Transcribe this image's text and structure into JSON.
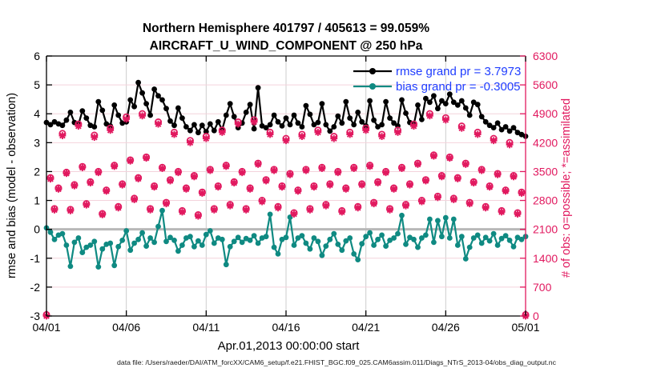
{
  "title": {
    "line1": "Northern Hemisphere 401797 / 405613 = 99.059%",
    "line2": "AIRCRAFT_U_WIND_COMPONENT @ 250 hPa"
  },
  "footer": "data file: /Users/raeder/DAI/ATM_forcXX/CAM6_setup/f.e21.FHIST_BGC.f09_025.CAM6assim.011/Diags_NTrS_2013-04/obs_diag_output.nc",
  "legend": {
    "items": [
      {
        "label": "rmse grand pr = 3.7973",
        "series": "rmse"
      },
      {
        "label": "bias grand pr = -0.3005",
        "series": "bias"
      }
    ],
    "text_color": "#1f3dff"
  },
  "colors": {
    "rmse": "#000000",
    "bias": "#0f8a82",
    "obs": "#e1195f",
    "legend_text": "#1f3dff",
    "grid_vertical": "#cdcdcd",
    "grid_horizontal": "#f4d3dc",
    "zero_line": "#b8b8b8",
    "axis_left": "#000000",
    "axis_right": "#e1195f"
  },
  "chart_data": {
    "type": "line",
    "title": "Northern Hemisphere 401797 / 405613 = 99.059% | AIRCRAFT_U_WIND_COMPONENT @ 250 hPa",
    "xlabel": "Apr.01,2013 00:00:00 start",
    "x_axis": {
      "tick_labels": [
        "04/01",
        "04/06",
        "04/11",
        "04/16",
        "04/21",
        "04/26",
        "05/01"
      ],
      "tick_bins": [
        0,
        20,
        40,
        60,
        80,
        100,
        120
      ],
      "n_bins": 121,
      "bins_per_day": 4,
      "grid": true
    },
    "left_axis": {
      "label": "rmse and bias (model - observation)",
      "lim": [
        -3,
        6
      ],
      "tick_values": [
        -3,
        -2,
        -1,
        0,
        1,
        2,
        3,
        4,
        5,
        6
      ],
      "tick_labels": [
        "-3",
        "-2",
        "-1",
        "0",
        "1",
        "2",
        "3",
        "4",
        "5",
        "6"
      ],
      "grid": true
    },
    "right_axis": {
      "label": "# of obs: o=possible; *=assimilated",
      "lim": [
        0,
        6300
      ],
      "tick_values": [
        0,
        700,
        1400,
        2100,
        2800,
        3500,
        4200,
        4900,
        5600,
        6300
      ],
      "tick_labels": [
        "0",
        "700",
        "1400",
        "2100",
        "2800",
        "3500",
        "4200",
        "4900",
        "5600",
        "6300"
      ]
    },
    "zero_reference_line": 0,
    "series": [
      {
        "name": "rmse",
        "axis": "left",
        "color": "#000000",
        "marker": "dot-line",
        "grand_mean": 3.7973,
        "values": [
          3.7,
          3.62,
          3.72,
          3.65,
          3.6,
          3.78,
          4.05,
          3.7,
          3.62,
          4.1,
          3.85,
          3.6,
          3.55,
          4.42,
          4.12,
          3.65,
          3.58,
          4.3,
          3.95,
          3.68,
          3.72,
          4.48,
          4.25,
          5.08,
          4.72,
          4.35,
          3.95,
          4.85,
          4.62,
          4.48,
          4.18,
          3.75,
          3.6,
          4.2,
          3.85,
          3.55,
          3.42,
          3.62,
          3.35,
          3.6,
          3.38,
          3.65,
          3.42,
          3.72,
          3.45,
          3.95,
          4.35,
          3.9,
          3.52,
          3.68,
          4.05,
          4.32,
          3.48,
          4.9,
          3.58,
          3.52,
          3.62,
          3.95,
          3.72,
          3.58,
          3.85,
          3.62,
          3.95,
          3.68,
          3.55,
          4.28,
          3.98,
          3.62,
          3.7,
          4.35,
          3.62,
          3.4,
          3.55,
          3.92,
          3.68,
          4.42,
          3.85,
          3.62,
          4.05,
          3.72,
          3.58,
          4.45,
          3.78,
          3.55,
          3.62,
          4.42,
          3.85,
          3.68,
          3.58,
          4.48,
          4.02,
          3.7,
          3.62,
          4.3,
          3.8,
          4.53,
          4.4,
          4.62,
          4.18,
          4.45,
          4.35,
          4.68,
          4.4,
          4.3,
          4.45,
          4.2,
          3.95,
          4.4,
          4.32,
          3.9,
          3.72,
          3.6,
          3.52,
          3.68,
          3.45,
          3.55,
          3.4,
          3.52,
          3.35,
          3.28,
          3.22
        ]
      },
      {
        "name": "bias",
        "axis": "left",
        "color": "#0f8a82",
        "marker": "dot-line",
        "grand_mean": -0.3005,
        "values": [
          0.05,
          -0.1,
          -0.35,
          -0.2,
          -0.15,
          -0.55,
          -1.28,
          -0.45,
          -0.3,
          -0.8,
          -0.62,
          -0.55,
          -0.42,
          -1.3,
          -0.68,
          -0.52,
          -0.48,
          -1.25,
          -0.6,
          -0.38,
          -0.05,
          -0.72,
          -0.48,
          -0.35,
          -0.12,
          -0.58,
          -0.3,
          -0.45,
          0.1,
          0.65,
          -0.42,
          -0.28,
          -0.38,
          -0.75,
          -0.55,
          -0.3,
          -0.25,
          -0.6,
          -0.4,
          -0.55,
          -0.18,
          -0.05,
          -0.48,
          -0.3,
          -0.35,
          -1.22,
          -0.6,
          -0.42,
          -0.28,
          -0.45,
          -0.32,
          -0.38,
          -0.22,
          -0.48,
          -0.3,
          -0.25,
          0.52,
          -0.62,
          -0.85,
          -0.35,
          -0.28,
          0.42,
          -0.55,
          -0.3,
          -0.22,
          -0.48,
          -0.68,
          -0.3,
          -0.42,
          -0.9,
          -0.58,
          -0.35,
          -0.15,
          -0.52,
          -0.72,
          -0.4,
          -0.3,
          -0.85,
          -1.05,
          -0.5,
          -0.25,
          -0.12,
          -0.55,
          -0.35,
          -0.2,
          -0.58,
          -0.38,
          -0.3,
          -0.15,
          0.48,
          -0.52,
          -0.28,
          -0.35,
          -0.62,
          -0.3,
          -0.2,
          0.35,
          -0.45,
          0.3,
          -0.25,
          0.4,
          -0.3,
          0.35,
          -0.55,
          -0.25,
          -1.02,
          -0.62,
          -0.3,
          -0.2,
          -0.48,
          -0.28,
          -0.4,
          -0.15,
          -0.55,
          -0.32,
          -0.22,
          -0.38,
          -0.6,
          -0.28,
          -0.35,
          -0.25
        ]
      },
      {
        "name": "obs_possible",
        "axis": "right",
        "color": "#e1195f",
        "marker": "o",
        "values": [
          30,
          3350,
          2600,
          3100,
          4420,
          3480,
          2580,
          3180,
          4650,
          3620,
          2720,
          3250,
          4380,
          3500,
          2480,
          3050,
          4550,
          3650,
          2650,
          3200,
          4820,
          3780,
          2850,
          3350,
          4900,
          3850,
          2600,
          3150,
          4700,
          3600,
          2750,
          3300,
          4450,
          3500,
          2550,
          3100,
          4250,
          3400,
          2450,
          3000,
          4350,
          3550,
          2600,
          3150,
          4500,
          3650,
          2700,
          3250,
          4700,
          3500,
          2600,
          3100,
          4750,
          3700,
          2800,
          3300,
          4450,
          3550,
          2650,
          3150,
          4300,
          3450,
          2500,
          3050,
          4400,
          3550,
          2600,
          3150,
          4500,
          3600,
          2700,
          3200,
          4350,
          3500,
          2550,
          3100,
          4450,
          3600,
          2650,
          3200,
          4550,
          3650,
          2750,
          3250,
          4400,
          3500,
          2600,
          3100,
          4500,
          3600,
          2700,
          3200,
          4650,
          3700,
          2800,
          3300,
          4900,
          3900,
          2900,
          3400,
          4800,
          3850,
          2850,
          3350,
          4600,
          3700,
          2750,
          3250,
          4450,
          3550,
          2650,
          3150,
          4300,
          3450,
          2550,
          3050,
          4200,
          3400,
          2500,
          3000,
          30
        ]
      },
      {
        "name": "obs_assimilated",
        "axis": "right",
        "color": "#e1195f",
        "marker": "*",
        "values": [
          0,
          3320,
          2570,
          3075,
          4370,
          3455,
          2550,
          3155,
          4600,
          3595,
          2690,
          3225,
          4330,
          3475,
          2455,
          3025,
          4500,
          3625,
          2620,
          3175,
          4770,
          3755,
          2820,
          3325,
          4850,
          3825,
          2570,
          3125,
          4650,
          3575,
          2720,
          3275,
          4400,
          3475,
          2520,
          3075,
          4200,
          3375,
          2420,
          2975,
          4300,
          3525,
          2570,
          3125,
          4450,
          3625,
          2670,
          3225,
          4650,
          3475,
          2570,
          3075,
          4700,
          3675,
          2770,
          3275,
          4400,
          3525,
          2620,
          3125,
          4250,
          3425,
          2470,
          3025,
          4350,
          3525,
          2570,
          3125,
          4450,
          3575,
          2670,
          3175,
          4300,
          3475,
          2520,
          3075,
          4400,
          3575,
          2620,
          3175,
          4500,
          3625,
          2720,
          3225,
          4350,
          3475,
          2570,
          3075,
          4450,
          3575,
          2670,
          3175,
          4600,
          3675,
          2770,
          3275,
          4850,
          3875,
          2870,
          3375,
          4750,
          3825,
          2820,
          3325,
          4550,
          3675,
          2720,
          3225,
          4400,
          3525,
          2620,
          3125,
          4250,
          3425,
          2520,
          3025,
          4150,
          3375,
          2470,
          2975,
          0
        ]
      }
    ],
    "legend_position": "upper-right-inside",
    "grid": true
  }
}
